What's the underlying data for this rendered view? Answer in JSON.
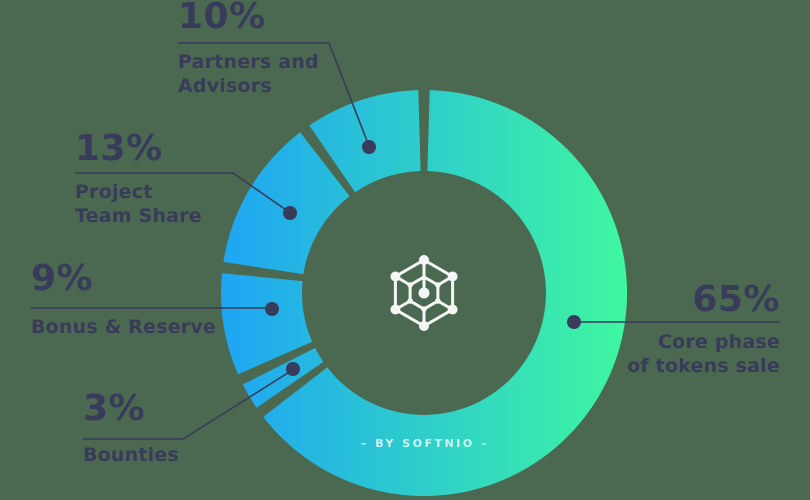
{
  "chart_data": {
    "type": "donut",
    "direction": "clockwise",
    "start_angle_deg": 0,
    "donut_hole_ratio": 0.6,
    "segments": [
      {
        "label": "Core phase of tokens sale",
        "value": 65
      },
      {
        "label": "Bounties",
        "value": 3
      },
      {
        "label": "Bonus & Reserve",
        "value": 9
      },
      {
        "label": "Project Team Share",
        "value": 13
      },
      {
        "label": "Partners and Advisors",
        "value": 10
      }
    ],
    "gradient": {
      "from": "#1ea5f4",
      "to": "#3ff7a0",
      "direction": "left-to-right"
    },
    "colors": {
      "background": "#4b6950",
      "label_text": "#383b5a",
      "leader_line": "#383b5a",
      "leader_dot": "#383b5a",
      "center_icon": "#ffffff",
      "watermark": "#ffffff"
    },
    "legend_position": "callouts-around-chart",
    "grid": false
  },
  "callouts": [
    {
      "id": "partners",
      "pct": "10%",
      "name": "Partners and\nAdvisors"
    },
    {
      "id": "project",
      "pct": "13%",
      "name": "Project\nTeam Share"
    },
    {
      "id": "bonus",
      "pct": "9%",
      "name": "Bonus & Reserve"
    },
    {
      "id": "bounties",
      "pct": "3%",
      "name": "Bounties"
    },
    {
      "id": "core",
      "pct": "65%",
      "name": "Core phase\nof tokens sale"
    }
  ],
  "watermark": "– BY SOFTNIO –",
  "icons": {
    "center": "network-cube-icon"
  }
}
